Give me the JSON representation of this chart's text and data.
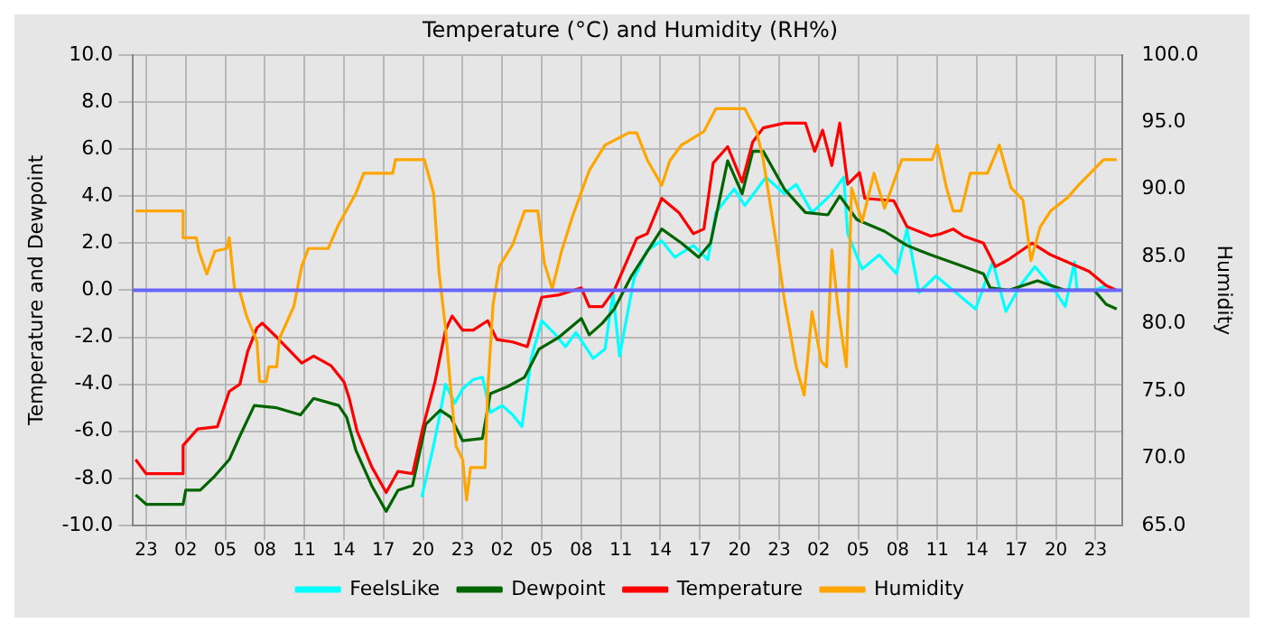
{
  "chart_data": {
    "type": "line",
    "title": "Temperature (°C) and Humidity (RH%)",
    "ylabel": "Temperature and Dewpoint",
    "y2label": "Humidity",
    "xlim": [
      "--01-01T22:00",
      "--01-05T01:00"
    ],
    "xticks": [
      {
        "value": "--01-01T23:00",
        "label": "23"
      },
      {
        "value": "--01-02T02:00",
        "label": "02"
      },
      {
        "value": "--01-02T05:00",
        "label": "05"
      },
      {
        "value": "--01-02T08:00",
        "label": "08"
      },
      {
        "value": "--01-02T11:00",
        "label": "11"
      },
      {
        "value": "--01-02T14:00",
        "label": "14"
      },
      {
        "value": "--01-02T17:00",
        "label": "17"
      },
      {
        "value": "--01-02T20:00",
        "label": "20"
      },
      {
        "value": "--01-02T23:00",
        "label": "23"
      },
      {
        "value": "--01-03T02:00",
        "label": "02"
      },
      {
        "value": "--01-03T05:00",
        "label": "05"
      },
      {
        "value": "--01-03T08:00",
        "label": "08"
      },
      {
        "value": "--01-03T11:00",
        "label": "11"
      },
      {
        "value": "--01-03T14:00",
        "label": "14"
      },
      {
        "value": "--01-03T17:00",
        "label": "17"
      },
      {
        "value": "--01-03T20:00",
        "label": "20"
      },
      {
        "value": "--01-03T23:00",
        "label": "23"
      },
      {
        "value": "--01-04T02:00",
        "label": "02"
      },
      {
        "value": "--01-04T05:00",
        "label": "05"
      },
      {
        "value": "--01-04T08:00",
        "label": "08"
      },
      {
        "value": "--01-04T11:00",
        "label": "11"
      },
      {
        "value": "--01-04T14:00",
        "label": "14"
      },
      {
        "value": "--01-04T17:00",
        "label": "17"
      },
      {
        "value": "--01-04T20:00",
        "label": "20"
      },
      {
        "value": "--01-04T23:00",
        "label": "23"
      }
    ],
    "ylim": [
      -10,
      10
    ],
    "yticks": [
      {
        "value": -10,
        "label": "-10.0"
      },
      {
        "value": -8,
        "label": "-8.0"
      },
      {
        "value": -6,
        "label": "-6.0"
      },
      {
        "value": -4,
        "label": "-4.0"
      },
      {
        "value": -2,
        "label": "-2.0"
      },
      {
        "value": 0,
        "label": "0.0"
      },
      {
        "value": 2,
        "label": "2.0"
      },
      {
        "value": 4,
        "label": "4.0"
      },
      {
        "value": 6,
        "label": "6.0"
      },
      {
        "value": 8,
        "label": "8.0"
      },
      {
        "value": 10,
        "label": "10.0"
      }
    ],
    "y2lim": [
      65,
      100
    ],
    "y2ticks": [
      {
        "value": 65,
        "label": "65.0"
      },
      {
        "value": 70,
        "label": "70.0"
      },
      {
        "value": 75,
        "label": "75.0"
      },
      {
        "value": 80,
        "label": "80.0"
      },
      {
        "value": 85,
        "label": "85.0"
      },
      {
        "value": 90,
        "label": "90.0"
      },
      {
        "value": 95,
        "label": "95.0"
      },
      {
        "value": 100,
        "label": "100.0"
      }
    ],
    "grid": true,
    "legend": "bottom",
    "marker": "none",
    "line_style": "solid",
    "ref_lines": [
      {
        "axis": "y",
        "value": 0,
        "color": "#6666ff"
      }
    ],
    "series": [
      {
        "name": "FeelsLike",
        "color": "#00ffff",
        "x": [
          "--01-02T19:54",
          "--01-02T20:48",
          "--01-02T21:18",
          "--01-02T21:42",
          "--01-02T22:24",
          "--01-02T23:00",
          "--01-02T23:48",
          "--01-03T00:30",
          "--01-03T01:06",
          "--01-03T02:00",
          "--01-03T02:48",
          "--01-03T03:30",
          "--01-03T04:12",
          "--01-03T05:00",
          "--01-03T05:54",
          "--01-03T06:48",
          "--01-03T07:36",
          "--01-03T08:54",
          "--01-03T09:48",
          "--01-03T10:24",
          "--01-03T10:54",
          "--01-03T12:00",
          "--01-03T13:00",
          "--01-03T14:06",
          "--01-03T15:06",
          "--01-03T16:30",
          "--01-03T17:36",
          "--01-03T18:12",
          "--01-03T19:36",
          "--01-03T20:24",
          "--01-03T22:00",
          "--01-03T23:24",
          "--01-04T00:18",
          "--01-04T01:30",
          "--01-04T03:00",
          "--01-04T03:54",
          "--01-04T04:12",
          "--01-04T05:18",
          "--01-04T06:36",
          "--01-04T07:54",
          "--01-04T08:42",
          "--01-04T09:36",
          "--01-04T10:54",
          "--01-04T12:12",
          "--01-04T13:54",
          "--01-04T15:12",
          "--01-04T16:12",
          "--01-04T17:18",
          "--01-04T18:24",
          "--01-04T19:54",
          "--01-04T20:42",
          "--01-04T21:24",
          "--01-04T21:36",
          "--01-04T22:54",
          "--01-04T23:48"
        ],
        "values": [
          -8.8,
          -6.6,
          -5.2,
          -4,
          -4.8,
          -4.2,
          -3.8,
          -3.7,
          -5.2,
          -4.9,
          -5.3,
          -5.8,
          -2.9,
          -1.3,
          -1.8,
          -2.4,
          -1.8,
          -2.9,
          -2.5,
          -0.1,
          -2.8,
          0.5,
          1.7,
          2.1,
          1.4,
          1.9,
          1.3,
          3.3,
          4.3,
          3.6,
          4.8,
          4.1,
          4.5,
          3.3,
          4.1,
          4.8,
          2.4,
          0.9,
          1.5,
          0.7,
          2.6,
          -0.1,
          0.6,
          0,
          -0.8,
          1.2,
          -0.9,
          0.2,
          1,
          0,
          -0.7,
          1.2,
          0,
          0,
          0.2
        ]
      },
      {
        "name": "Dewpoint",
        "color": "#006400",
        "x": [
          "--01-01T22:12",
          "--01-01T23:00",
          "--01-02T01:48",
          "--01-02T02:00",
          "--01-02T03:06",
          "--01-02T04:12",
          "--01-02T05:18",
          "--01-02T06:06",
          "--01-02T07:12",
          "--01-02T08:54",
          "--01-02T10:42",
          "--01-02T11:42",
          "--01-02T13:36",
          "--01-02T14:12",
          "--01-02T14:54",
          "--01-02T16:06",
          "--01-02T17:12",
          "--01-02T18:06",
          "--01-02T19:12",
          "--01-02T20:12",
          "--01-02T21:18",
          "--01-02T22:06",
          "--01-02T23:00",
          "--01-03T00:30",
          "--01-03T01:06",
          "--01-03T02:24",
          "--01-03T03:42",
          "--01-03T04:48",
          "--01-03T06:18",
          "--01-03T08:00",
          "--01-03T08:36",
          "--01-03T09:36",
          "--01-03T10:30",
          "--01-03T11:48",
          "--01-03T14:06",
          "--01-03T15:36",
          "--01-03T16:54",
          "--01-03T17:48",
          "--01-03T19:06",
          "--01-03T20:12",
          "--01-03T21:00",
          "--01-03T21:48",
          "--01-03T23:24",
          "--01-04T01:00",
          "--01-04T02:42",
          "--01-04T03:36",
          "--01-04T04:54",
          "--01-04T07:00",
          "--01-04T08:42",
          "--01-04T10:30",
          "--01-04T13:00",
          "--01-04T14:30",
          "--01-04T15:00",
          "--01-04T16:24",
          "--01-04T18:36",
          "--01-04T20:42",
          "--01-04T22:54",
          "--01-04T23:48",
          "--01-05T00:36"
        ],
        "values": [
          -8.7,
          -9.1,
          -9.1,
          -8.5,
          -8.5,
          -7.9,
          -7.2,
          -6.2,
          -4.9,
          -5,
          -5.3,
          -4.6,
          -4.9,
          -5.4,
          -6.8,
          -8.3,
          -9.4,
          -8.5,
          -8.3,
          -5.7,
          -5.1,
          -5.4,
          -6.4,
          -6.3,
          -4.4,
          -4.1,
          -3.7,
          -2.5,
          -2,
          -1.2,
          -1.9,
          -1.4,
          -0.8,
          0.6,
          2.6,
          2,
          1.4,
          2,
          5.5,
          4.1,
          5.9,
          5.9,
          4.3,
          3.3,
          3.2,
          4,
          3,
          2.5,
          1.9,
          1.5,
          1,
          0.7,
          0.1,
          0,
          0.4,
          0,
          0,
          -0.6,
          -0.8
        ]
      },
      {
        "name": "Temperature",
        "color": "#ff0000",
        "x": [
          "--01-01T22:12",
          "--01-01T23:00",
          "--01-02T01:48",
          "--01-02T01:48",
          "--01-02T02:54",
          "--01-02T04:24",
          "--01-02T05:18",
          "--01-02T06:06",
          "--01-02T06:42",
          "--01-02T07:24",
          "--01-02T07:48",
          "--01-02T08:54",
          "--01-02T10:48",
          "--01-02T11:42",
          "--01-02T13:00",
          "--01-02T14:00",
          "--01-02T14:24",
          "--01-02T15:00",
          "--01-02T16:06",
          "--01-02T17:12",
          "--01-02T18:06",
          "--01-02T19:12",
          "--01-02T20:00",
          "--01-02T20:54",
          "--01-02T21:42",
          "--01-02T22:12",
          "--01-02T23:00",
          "--01-02T23:48",
          "--01-03T00:54",
          "--01-03T01:36",
          "--01-03T02:48",
          "--01-03T03:54",
          "--01-03T05:00",
          "--01-03T06:18",
          "--01-03T08:00",
          "--01-03T08:36",
          "--01-03T09:36",
          "--01-03T10:30",
          "--01-03T12:12",
          "--01-03T13:00",
          "--01-03T14:06",
          "--01-03T15:24",
          "--01-03T16:30",
          "--01-03T17:18",
          "--01-03T18:00",
          "--01-03T19:06",
          "--01-03T20:12",
          "--01-03T21:00",
          "--01-03T21:48",
          "--01-03T23:24",
          "--01-04T01:00",
          "--01-04T01:42",
          "--01-04T02:18",
          "--01-04T03:00",
          "--01-04T03:36",
          "--01-04T04:12",
          "--01-04T05:06",
          "--01-04T05:30",
          "--01-04T07:42",
          "--01-04T08:42",
          "--01-04T10:30",
          "--01-04T11:18",
          "--01-04T12:12",
          "--01-04T13:00",
          "--01-04T14:30",
          "--01-04T15:24",
          "--01-04T16:24",
          "--01-04T18:12",
          "--01-04T19:36",
          "--01-04T22:30",
          "--01-04T23:48",
          "--01-05T00:36"
        ],
        "values": [
          -7.2,
          -7.8,
          -7.8,
          -6.6,
          -5.9,
          -5.8,
          -4.3,
          -4,
          -2.6,
          -1.6,
          -1.4,
          -2,
          -3.1,
          -2.8,
          -3.2,
          -3.9,
          -4.6,
          -6,
          -7.5,
          -8.6,
          -7.7,
          -7.8,
          -5.8,
          -3.9,
          -1.7,
          -1.1,
          -1.7,
          -1.7,
          -1.3,
          -2.1,
          -2.2,
          -2.4,
          -0.3,
          -0.2,
          0.1,
          -0.7,
          -0.7,
          0,
          2.2,
          2.4,
          3.9,
          3.3,
          2.4,
          2.6,
          5.4,
          6.1,
          4.6,
          6.3,
          6.9,
          7.1,
          7.1,
          5.9,
          6.8,
          5.3,
          7.1,
          4.5,
          5,
          3.9,
          3.8,
          2.7,
          2.3,
          2.4,
          2.6,
          2.3,
          2,
          1,
          1.3,
          2,
          1.5,
          0.8,
          0.2,
          0
        ]
      },
      {
        "name": "Humidity",
        "color": "#ffa500",
        "axis": "y2",
        "x": [
          "--01-01T22:12",
          "--01-02T01:48",
          "--01-02T01:48",
          "--01-02T02:48",
          "--01-02T03:00",
          "--01-02T03:36",
          "--01-02T04:12",
          "--01-02T05:06",
          "--01-02T05:18",
          "--01-02T05:42",
          "--01-02T06:06",
          "--01-02T06:36",
          "--01-02T07:24",
          "--01-02T07:36",
          "--01-02T08:06",
          "--01-02T08:18",
          "--01-02T08:54",
          "--01-02T09:06",
          "--01-02T10:12",
          "--01-02T10:48",
          "--01-02T11:18",
          "--01-02T12:48",
          "--01-02T13:36",
          "--01-02T14:54",
          "--01-02T15:30",
          "--01-02T17:42",
          "--01-02T17:54",
          "--01-02T20:06",
          "--01-02T20:48",
          "--01-02T21:12",
          "--01-02T21:42",
          "--01-02T22:06",
          "--01-02T22:30",
          "--01-02T23:00",
          "--01-02T23:18",
          "--01-02T23:36",
          "--01-03T00:42",
          "--01-03T00:54",
          "--01-03T01:18",
          "--01-03T01:48",
          "--01-03T02:48",
          "--01-03T03:42",
          "--01-03T04:42",
          "--01-03T05:12",
          "--01-03T05:48",
          "--01-03T06:30",
          "--01-03T07:18",
          "--01-03T08:36",
          "--01-03T09:48",
          "--01-03T11:36",
          "--01-03T12:12",
          "--01-03T13:00",
          "--01-03T14:06",
          "--01-03T14:42",
          "--01-03T15:36",
          "--01-03T17:18",
          "--01-03T18:12",
          "--01-03T20:24",
          "--01-03T21:18",
          "--01-03T21:48",
          "--01-03T22:48",
          "--01-03T23:24",
          "--01-04T00:18",
          "--01-04T00:54",
          "--01-04T01:30",
          "--01-04T02:12",
          "--01-04T02:36",
          "--01-04T03:00",
          "--01-04T03:30",
          "--01-04T04:06",
          "--01-04T04:30",
          "--01-04T05:18",
          "--01-04T06:12",
          "--01-04T07:00",
          "--01-04T08:18",
          "--01-04T10:36",
          "--01-04T11:00",
          "--01-04T11:42",
          "--01-04T12:12",
          "--01-04T12:48",
          "--01-04T13:30",
          "--01-04T14:48",
          "--01-04T15:42",
          "--01-04T16:36",
          "--01-04T17:30",
          "--01-04T18:06",
          "--01-04T18:48",
          "--01-04T19:36",
          "--01-04T20:54",
          "--01-04T21:42",
          "--01-04T22:48",
          "--01-04T23:36",
          "--01-05T00:36"
        ],
        "values": [
          88.4,
          88.4,
          86.4,
          86.4,
          85.4,
          83.7,
          85.4,
          85.6,
          86.4,
          82.6,
          82.4,
          80.6,
          78.7,
          75.7,
          75.7,
          76.8,
          76.8,
          78.9,
          81.3,
          84.3,
          85.6,
          85.6,
          87.4,
          89.7,
          91.2,
          91.2,
          92.2,
          92.2,
          89.7,
          83.9,
          79.7,
          75.1,
          70.9,
          69.9,
          66.9,
          69.3,
          69.3,
          75,
          81.4,
          84.3,
          85.9,
          88.4,
          88.4,
          84.5,
          82.6,
          85.4,
          87.9,
          91.4,
          93.3,
          94.2,
          94.2,
          92.2,
          90.3,
          92.1,
          93.3,
          94.3,
          96,
          96,
          94.3,
          92.2,
          85.9,
          81.8,
          76.8,
          74.7,
          80.9,
          77.2,
          76.8,
          85.5,
          80.9,
          76.8,
          90.1,
          87.6,
          91.2,
          88.6,
          92.2,
          92.2,
          93.3,
          90.1,
          88.4,
          88.4,
          91.2,
          91.2,
          93.3,
          90.1,
          89.2,
          84.7,
          87.2,
          88.4,
          89.4,
          90.3,
          91.4,
          92.2,
          92.2
        ]
      }
    ]
  }
}
